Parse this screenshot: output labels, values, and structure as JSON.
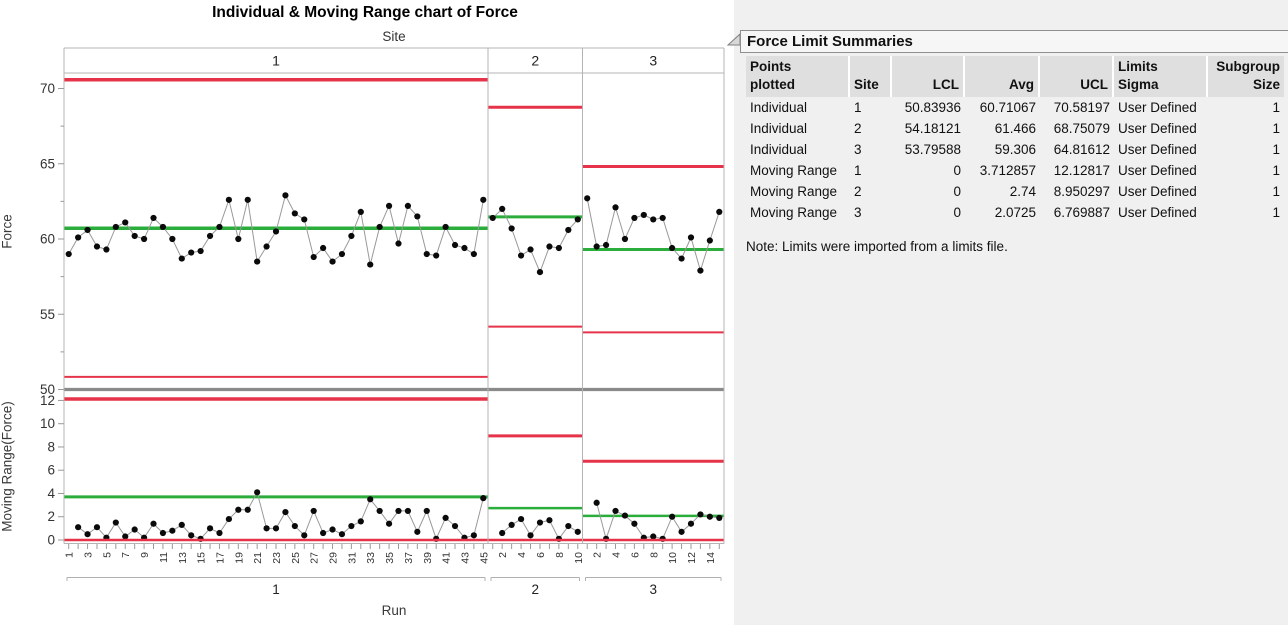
{
  "chart_data": {
    "type": "line",
    "chart_kind": "individual and moving range control chart",
    "title": "Individual & Moving Range chart of Force",
    "panel_variable": "Site",
    "xlabel": "Run",
    "legend": "none",
    "grid": "off",
    "colors": {
      "limit_line_red": "#e73349",
      "center_line_green": "#2aad3b",
      "chart_divider_gray": "#8a8a8a",
      "frame_gray": "#b4b4b4",
      "point_black": "#0a0a0a",
      "connector_gray": "#999999"
    },
    "panels": [
      {
        "site": "1",
        "runs": 45,
        "x_tick_labels": [
          1,
          3,
          5,
          7,
          9,
          11,
          13,
          15,
          17,
          19,
          21,
          23,
          25,
          27,
          29,
          31,
          33,
          35,
          37,
          39,
          41,
          43,
          45
        ],
        "individual_values": [
          59.0,
          60.1,
          60.6,
          59.5,
          59.3,
          60.8,
          61.1,
          60.2,
          60.0,
          61.4,
          60.8,
          60.0,
          58.7,
          59.1,
          59.2,
          60.2,
          60.8,
          62.6,
          60.0,
          62.6,
          58.5,
          59.5,
          60.5,
          62.9,
          61.7,
          61.3,
          58.8,
          59.4,
          58.5,
          59.0,
          60.2,
          61.8,
          58.3,
          60.8,
          62.2,
          59.7,
          62.2,
          61.5,
          59.0,
          58.9,
          60.8,
          59.6,
          59.4,
          59.0,
          62.6
        ]
      },
      {
        "site": "2",
        "runs": 10,
        "x_tick_labels": [
          2,
          4,
          6,
          8,
          10
        ],
        "individual_values": [
          61.4,
          62.0,
          60.7,
          58.9,
          59.3,
          57.8,
          59.5,
          59.4,
          60.6,
          61.3
        ]
      },
      {
        "site": "3",
        "runs": 15,
        "x_tick_labels": [
          2,
          4,
          6,
          8,
          10,
          12,
          14
        ],
        "individual_values": [
          62.7,
          59.5,
          59.6,
          62.1,
          60.0,
          61.4,
          61.6,
          61.3,
          61.4,
          59.4,
          58.7,
          60.1,
          57.9,
          59.9,
          61.8
        ]
      }
    ],
    "individual_chart": {
      "ylabel": "Force",
      "yticks": [
        50,
        55,
        60,
        65,
        70
      ],
      "ylim": [
        50,
        71
      ],
      "limits_by_site": {
        "1": {
          "lcl": 50.83936,
          "avg": 60.71067,
          "ucl": 70.58197
        },
        "2": {
          "lcl": 54.18121,
          "avg": 61.466,
          "ucl": 68.75079
        },
        "3": {
          "lcl": 53.79588,
          "avg": 59.306,
          "ucl": 64.81612
        }
      }
    },
    "moving_range_chart": {
      "ylabel": "Moving Range(Force)",
      "yticks": [
        0,
        2,
        4,
        6,
        8,
        10,
        12
      ],
      "ylim": [
        0,
        12.4
      ],
      "values_rule": "moving range = |x(i) - x(i-1)|, plotted from run 2 of each site panel",
      "limits_by_site": {
        "1": {
          "lcl": 0,
          "avg": 3.712857,
          "ucl": 12.12817
        },
        "2": {
          "lcl": 0,
          "avg": 2.74,
          "ucl": 8.950297
        },
        "3": {
          "lcl": 0,
          "avg": 2.0725,
          "ucl": 6.769887
        }
      }
    }
  },
  "summary_table": {
    "title": "Force Limit Summaries",
    "columns": [
      {
        "lines": [
          "Points",
          "plotted"
        ],
        "align": "left"
      },
      {
        "lines": [
          "",
          "Site"
        ],
        "align": "left"
      },
      {
        "lines": [
          "",
          "LCL"
        ],
        "align": "right"
      },
      {
        "lines": [
          "",
          "Avg"
        ],
        "align": "right"
      },
      {
        "lines": [
          "",
          "UCL"
        ],
        "align": "right"
      },
      {
        "lines": [
          "Limits",
          "Sigma"
        ],
        "align": "left"
      },
      {
        "lines": [
          "Subgroup",
          "Size"
        ],
        "align": "right"
      }
    ],
    "rows": [
      [
        "Individual",
        "1",
        "50.83936",
        "60.71067",
        "70.58197",
        "User Defined",
        "1"
      ],
      [
        "Individual",
        "2",
        "54.18121",
        "61.466",
        "68.75079",
        "User Defined",
        "1"
      ],
      [
        "Individual",
        "3",
        "53.79588",
        "59.306",
        "64.81612",
        "User Defined",
        "1"
      ],
      [
        "Moving Range",
        "1",
        "0",
        "3.712857",
        "12.12817",
        "User Defined",
        "1"
      ],
      [
        "Moving Range",
        "2",
        "0",
        "2.74",
        "8.950297",
        "User Defined",
        "1"
      ],
      [
        "Moving Range",
        "3",
        "0",
        "2.0725",
        "6.769887",
        "User Defined",
        "1"
      ]
    ],
    "note": "Note: Limits were imported from a limits file."
  }
}
